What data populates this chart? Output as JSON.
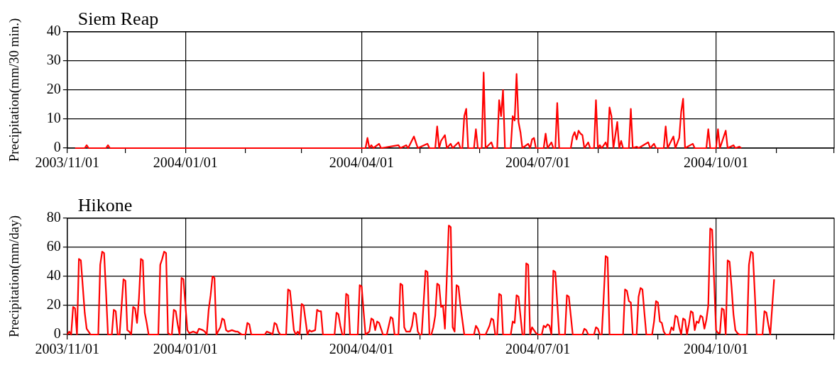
{
  "chart_data": [
    {
      "type": "line",
      "title": "Siem Reap",
      "ylabel": "Precipitation(mm/30 min.)",
      "color": "#ff0000",
      "marker": "none",
      "grid": true,
      "xlim": [
        "2003-11-01",
        "2004-12-01"
      ],
      "xticks": [
        {
          "value": "2003-11-01",
          "label": "2003/11/01"
        },
        {
          "value": "2003-12-01",
          "label": null
        },
        {
          "value": "2004-01-01",
          "label": "2004/01/01"
        },
        {
          "value": "2004-02-01",
          "label": null
        },
        {
          "value": "2004-03-01",
          "label": null
        },
        {
          "value": "2004-04-01",
          "label": "2004/04/01"
        },
        {
          "value": "2004-05-01",
          "label": null
        },
        {
          "value": "2004-06-01",
          "label": null
        },
        {
          "value": "2004-07-01",
          "label": "2004/07/01"
        },
        {
          "value": "2004-08-01",
          "label": null
        },
        {
          "value": "2004-09-01",
          "label": null
        },
        {
          "value": "2004-10-01",
          "label": "2004/10/01"
        },
        {
          "value": "2004-11-01",
          "label": null
        },
        {
          "value": "2004-12-01",
          "label": null
        }
      ],
      "ylim": [
        0,
        40
      ],
      "yticks": [
        0,
        10,
        20,
        30,
        40
      ],
      "x": [
        "2003-11-05",
        "2003-11-10",
        "2003-11-11",
        "2003-11-12",
        "2003-11-21",
        "2003-11-22",
        "2003-11-23",
        "2004-04-03",
        "2004-04-04",
        "2004-04-05",
        "2004-04-06",
        "2004-04-07",
        "2004-04-10",
        "2004-04-11",
        "2004-04-20",
        "2004-04-21",
        "2004-04-24",
        "2004-04-25",
        "2004-04-28",
        "2004-04-29",
        "2004-04-30",
        "2004-05-05",
        "2004-05-06",
        "2004-05-09",
        "2004-05-10",
        "2004-05-11",
        "2004-05-12",
        "2004-05-14",
        "2004-05-15",
        "2004-05-17",
        "2004-05-18",
        "2004-05-21",
        "2004-05-22",
        "2004-05-23",
        "2004-05-24",
        "2004-05-25",
        "2004-05-26",
        "2004-05-29",
        "2004-05-30",
        "2004-05-31",
        "2004-06-02",
        "2004-06-03",
        "2004-06-04",
        "2004-06-07",
        "2004-06-08",
        "2004-06-10",
        "2004-06-11",
        "2004-06-12",
        "2004-06-13",
        "2004-06-14",
        "2004-06-17",
        "2004-06-18",
        "2004-06-19",
        "2004-06-20",
        "2004-06-21",
        "2004-06-22",
        "2004-06-23",
        "2004-06-26",
        "2004-06-27",
        "2004-06-28",
        "2004-06-29",
        "2004-06-30",
        "2004-07-04",
        "2004-07-05",
        "2004-07-06",
        "2004-07-08",
        "2004-07-09",
        "2004-07-10",
        "2004-07-11",
        "2004-07-12",
        "2004-07-18",
        "2004-07-19",
        "2004-07-20",
        "2004-07-21",
        "2004-07-22",
        "2004-07-23",
        "2004-07-24",
        "2004-07-25",
        "2004-07-27",
        "2004-07-28",
        "2004-07-30",
        "2004-07-31",
        "2004-08-01",
        "2004-08-02",
        "2004-08-03",
        "2004-08-05",
        "2004-08-06",
        "2004-08-07",
        "2004-08-08",
        "2004-08-09",
        "2004-08-11",
        "2004-08-12",
        "2004-08-13",
        "2004-08-14",
        "2004-08-17",
        "2004-08-18",
        "2004-08-19",
        "2004-08-21",
        "2004-08-22",
        "2004-08-27",
        "2004-08-28",
        "2004-08-30",
        "2004-08-31",
        "2004-09-04",
        "2004-09-05",
        "2004-09-06",
        "2004-09-09",
        "2004-09-10",
        "2004-09-12",
        "2004-09-13",
        "2004-09-14",
        "2004-09-15",
        "2004-09-19",
        "2004-09-20",
        "2004-09-26",
        "2004-09-27",
        "2004-09-28",
        "2004-10-01",
        "2004-10-02",
        "2004-10-03",
        "2004-10-06",
        "2004-10-07",
        "2004-10-10",
        "2004-10-11",
        "2004-10-13",
        "2004-10-14"
      ],
      "values": [
        0,
        0,
        1,
        0,
        0,
        1,
        0,
        0,
        3.5,
        0,
        1,
        0,
        1.5,
        0,
        1,
        0,
        1,
        0,
        4,
        2,
        0,
        1.5,
        0,
        0,
        7.5,
        0,
        2.5,
        4.5,
        0,
        1.5,
        0,
        2,
        0,
        0,
        11,
        13.5,
        0,
        0,
        6.5,
        0,
        0,
        26,
        0,
        2,
        0,
        0,
        16.5,
        11,
        20,
        0,
        0,
        11,
        9.5,
        25.5,
        9,
        5.5,
        0,
        1.5,
        0,
        3,
        3.5,
        0,
        0,
        5,
        0,
        2,
        0,
        0,
        15.5,
        0,
        0,
        4,
        5.5,
        3,
        6,
        5,
        4.5,
        0,
        2,
        0,
        0,
        16.5,
        0,
        1,
        0,
        2,
        0,
        14,
        11,
        0,
        9,
        0,
        2.5,
        0,
        0,
        13.5,
        0,
        0.5,
        0,
        2,
        0,
        1.5,
        0,
        0,
        7.5,
        0,
        4,
        0,
        3.5,
        12.5,
        17,
        0,
        1.5,
        0,
        0,
        6.5,
        0,
        0,
        6.5,
        0,
        6,
        0,
        1,
        0,
        0.5,
        0
      ]
    },
    {
      "type": "line",
      "title": "Hikone",
      "ylabel": "Precipitation(mm/day)",
      "color": "#ff0000",
      "marker": "none",
      "grid": true,
      "xlim": [
        "2003-11-01",
        "2004-12-01"
      ],
      "xticks": [
        {
          "value": "2003-11-01",
          "label": "2003/11/01"
        },
        {
          "value": "2003-12-01",
          "label": null
        },
        {
          "value": "2004-01-01",
          "label": "2004/01/01"
        },
        {
          "value": "2004-02-01",
          "label": null
        },
        {
          "value": "2004-03-01",
          "label": null
        },
        {
          "value": "2004-04-01",
          "label": "2004/04/01"
        },
        {
          "value": "2004-05-01",
          "label": null
        },
        {
          "value": "2004-06-01",
          "label": null
        },
        {
          "value": "2004-07-01",
          "label": "2004/07/01"
        },
        {
          "value": "2004-08-01",
          "label": null
        },
        {
          "value": "2004-09-01",
          "label": null
        },
        {
          "value": "2004-10-01",
          "label": "2004/10/01"
        },
        {
          "value": "2004-11-01",
          "label": null
        },
        {
          "value": "2004-12-01",
          "label": null
        }
      ],
      "ylim": [
        0,
        80
      ],
      "yticks": [
        0,
        20,
        40,
        60,
        80
      ],
      "x": [
        "2003-11-01",
        "2003-11-02",
        "2003-11-03",
        "2003-11-04",
        "2003-11-05",
        "2003-11-06",
        "2003-11-07",
        "2003-11-08",
        "2003-11-09",
        "2003-11-10",
        "2003-11-11",
        "2003-11-12",
        "2003-11-13",
        "2003-11-17",
        "2003-11-18",
        "2003-11-19",
        "2003-11-20",
        "2003-11-21",
        "2003-11-22",
        "2003-11-24",
        "2003-11-25",
        "2003-11-26",
        "2003-11-27",
        "2003-11-28",
        "2003-11-29",
        "2003-11-30",
        "2003-12-01",
        "2003-12-02",
        "2003-12-03",
        "2003-12-04",
        "2003-12-05",
        "2003-12-06",
        "2003-12-07",
        "2003-12-08",
        "2003-12-09",
        "2003-12-10",
        "2003-12-11",
        "2003-12-12",
        "2003-12-13",
        "2003-12-18",
        "2003-12-19",
        "2003-12-20",
        "2003-12-21",
        "2003-12-22",
        "2003-12-23",
        "2003-12-24",
        "2003-12-25",
        "2003-12-26",
        "2003-12-27",
        "2003-12-28",
        "2003-12-29",
        "2003-12-30",
        "2003-12-31",
        "2004-01-01",
        "2004-01-02",
        "2004-01-03",
        "2004-01-05",
        "2004-01-07",
        "2004-01-08",
        "2004-01-10",
        "2004-01-11",
        "2004-01-12",
        "2004-01-13",
        "2004-01-14",
        "2004-01-15",
        "2004-01-16",
        "2004-01-17",
        "2004-01-19",
        "2004-01-20",
        "2004-01-21",
        "2004-01-22",
        "2004-01-23",
        "2004-01-25",
        "2004-01-27",
        "2004-01-28",
        "2004-01-30",
        "2004-02-01",
        "2004-02-02",
        "2004-02-03",
        "2004-02-04",
        "2004-02-11",
        "2004-02-12",
        "2004-02-14",
        "2004-02-15",
        "2004-02-16",
        "2004-02-17",
        "2004-02-18",
        "2004-02-19",
        "2004-02-22",
        "2004-02-23",
        "2004-02-24",
        "2004-02-25",
        "2004-02-26",
        "2004-02-27",
        "2004-02-28",
        "2004-02-29",
        "2004-03-01",
        "2004-03-02",
        "2004-03-03",
        "2004-03-04",
        "2004-03-05",
        "2004-03-06",
        "2004-03-08",
        "2004-03-09",
        "2004-03-10",
        "2004-03-11",
        "2004-03-12",
        "2004-03-18",
        "2004-03-19",
        "2004-03-20",
        "2004-03-21",
        "2004-03-22",
        "2004-03-23",
        "2004-03-24",
        "2004-03-25",
        "2004-03-26",
        "2004-03-30",
        "2004-03-31",
        "2004-04-01",
        "2004-04-02",
        "2004-04-03",
        "2004-04-05",
        "2004-04-06",
        "2004-04-07",
        "2004-04-08",
        "2004-04-09",
        "2004-04-10",
        "2004-04-12",
        "2004-04-14",
        "2004-04-15",
        "2004-04-16",
        "2004-04-17",
        "2004-04-18",
        "2004-04-20",
        "2004-04-21",
        "2004-04-22",
        "2004-04-23",
        "2004-04-24",
        "2004-04-26",
        "2004-04-27",
        "2004-04-28",
        "2004-04-29",
        "2004-04-30",
        "2004-05-01",
        "2004-05-02",
        "2004-05-03",
        "2004-05-04",
        "2004-05-05",
        "2004-05-06",
        "2004-05-07",
        "2004-05-08",
        "2004-05-09",
        "2004-05-10",
        "2004-05-11",
        "2004-05-12",
        "2004-05-13",
        "2004-05-14",
        "2004-05-15",
        "2004-05-16",
        "2004-05-17",
        "2004-05-18",
        "2004-05-19",
        "2004-05-20",
        "2004-05-21",
        "2004-05-22",
        "2004-05-23",
        "2004-05-24",
        "2004-05-29",
        "2004-05-30",
        "2004-05-31",
        "2004-06-01",
        "2004-06-04",
        "2004-06-05",
        "2004-06-06",
        "2004-06-07",
        "2004-06-08",
        "2004-06-09",
        "2004-06-10",
        "2004-06-11",
        "2004-06-12",
        "2004-06-13",
        "2004-06-17",
        "2004-06-18",
        "2004-06-19",
        "2004-06-20",
        "2004-06-21",
        "2004-06-22",
        "2004-06-23",
        "2004-06-24",
        "2004-06-25",
        "2004-06-26",
        "2004-06-27",
        "2004-06-28",
        "2004-06-29",
        "2004-06-30",
        "2004-07-01",
        "2004-07-03",
        "2004-07-04",
        "2004-07-05",
        "2004-07-06",
        "2004-07-07",
        "2004-07-08",
        "2004-07-09",
        "2004-07-10",
        "2004-07-11",
        "2004-07-12",
        "2004-07-15",
        "2004-07-16",
        "2004-07-17",
        "2004-07-18",
        "2004-07-19",
        "2004-07-24",
        "2004-07-25",
        "2004-07-26",
        "2004-07-27",
        "2004-07-30",
        "2004-07-31",
        "2004-08-01",
        "2004-08-02",
        "2004-08-03",
        "2004-08-04",
        "2004-08-05",
        "2004-08-06",
        "2004-08-07",
        "2004-08-14",
        "2004-08-15",
        "2004-08-16",
        "2004-08-17",
        "2004-08-18",
        "2004-08-19",
        "2004-08-21",
        "2004-08-22",
        "2004-08-23",
        "2004-08-24",
        "2004-08-25",
        "2004-08-26",
        "2004-08-29",
        "2004-08-30",
        "2004-08-31",
        "2004-09-01",
        "2004-09-02",
        "2004-09-03",
        "2004-09-04",
        "2004-09-05",
        "2004-09-07",
        "2004-09-08",
        "2004-09-09",
        "2004-09-10",
        "2004-09-11",
        "2004-09-12",
        "2004-09-13",
        "2004-09-14",
        "2004-09-15",
        "2004-09-16",
        "2004-09-17",
        "2004-09-18",
        "2004-09-19",
        "2004-09-20",
        "2004-09-21",
        "2004-09-22",
        "2004-09-23",
        "2004-09-24",
        "2004-09-25",
        "2004-09-26",
        "2004-09-27",
        "2004-09-28",
        "2004-09-29",
        "2004-09-30",
        "2004-10-01",
        "2004-10-02",
        "2004-10-03",
        "2004-10-04",
        "2004-10-05",
        "2004-10-06",
        "2004-10-07",
        "2004-10-08",
        "2004-10-09",
        "2004-10-10",
        "2004-10-11",
        "2004-10-12",
        "2004-10-13",
        "2004-10-17",
        "2004-10-18",
        "2004-10-19",
        "2004-10-20",
        "2004-10-21",
        "2004-10-22",
        "2004-10-25",
        "2004-10-26",
        "2004-10-27",
        "2004-10-28",
        "2004-10-29",
        "2004-10-30",
        "2004-10-31"
      ],
      "values": [
        0,
        2,
        0,
        19,
        18,
        0,
        52,
        51,
        33,
        15,
        4,
        2,
        0,
        0,
        48,
        57,
        56,
        29,
        0,
        0,
        17,
        16,
        0,
        0,
        19,
        38,
        37,
        3,
        2,
        0,
        19,
        18,
        8,
        25,
        52,
        51,
        15,
        8,
        0,
        0,
        48,
        52,
        57,
        56,
        1,
        0,
        0,
        17,
        16,
        7,
        0,
        39,
        38,
        20,
        3,
        1,
        2,
        1,
        4,
        3,
        2,
        0,
        17,
        27,
        40,
        39,
        0,
        5,
        11,
        10,
        3,
        2,
        3,
        2,
        2,
        0,
        0,
        8,
        7,
        0,
        0,
        2,
        1,
        0,
        8,
        7,
        2,
        0,
        0,
        31,
        30,
        17,
        3,
        0,
        2,
        0,
        21,
        20,
        10,
        0,
        3,
        2,
        3,
        17,
        16,
        16,
        0,
        0,
        15,
        14,
        6,
        0,
        0,
        28,
        27,
        0,
        0,
        34,
        33,
        16,
        0,
        2,
        11,
        10,
        3,
        9,
        8,
        0,
        0,
        6,
        12,
        11,
        0,
        0,
        35,
        34,
        5,
        2,
        2,
        6,
        15,
        14,
        2,
        0,
        0,
        22,
        44,
        43,
        0,
        0,
        5,
        13,
        35,
        34,
        19,
        20,
        4,
        40,
        75,
        74,
        5,
        2,
        34,
        33,
        20,
        10,
        0,
        0,
        6,
        4,
        0,
        0,
        3,
        6,
        11,
        10,
        0,
        0,
        28,
        27,
        0,
        0,
        9,
        8,
        27,
        26,
        13,
        0,
        0,
        49,
        48,
        0,
        5,
        3,
        1,
        0,
        0,
        6,
        5,
        7,
        6,
        0,
        44,
        43,
        22,
        0,
        0,
        27,
        26,
        13,
        0,
        0,
        4,
        3,
        0,
        0,
        5,
        4,
        0,
        0,
        26,
        54,
        53,
        0,
        0,
        31,
        30,
        23,
        22,
        0,
        0,
        26,
        32,
        31,
        15,
        0,
        0,
        9,
        23,
        22,
        9,
        8,
        2,
        0,
        0,
        5,
        3,
        13,
        12,
        5,
        0,
        11,
        10,
        0,
        7,
        16,
        15,
        3,
        9,
        8,
        13,
        12,
        4,
        10,
        20,
        73,
        72,
        38,
        3,
        1,
        1,
        18,
        17,
        0,
        51,
        50,
        33,
        14,
        3,
        1,
        0,
        0,
        48,
        57,
        56,
        29,
        0,
        0,
        16,
        15,
        7,
        0,
        19,
        38
      ]
    }
  ]
}
